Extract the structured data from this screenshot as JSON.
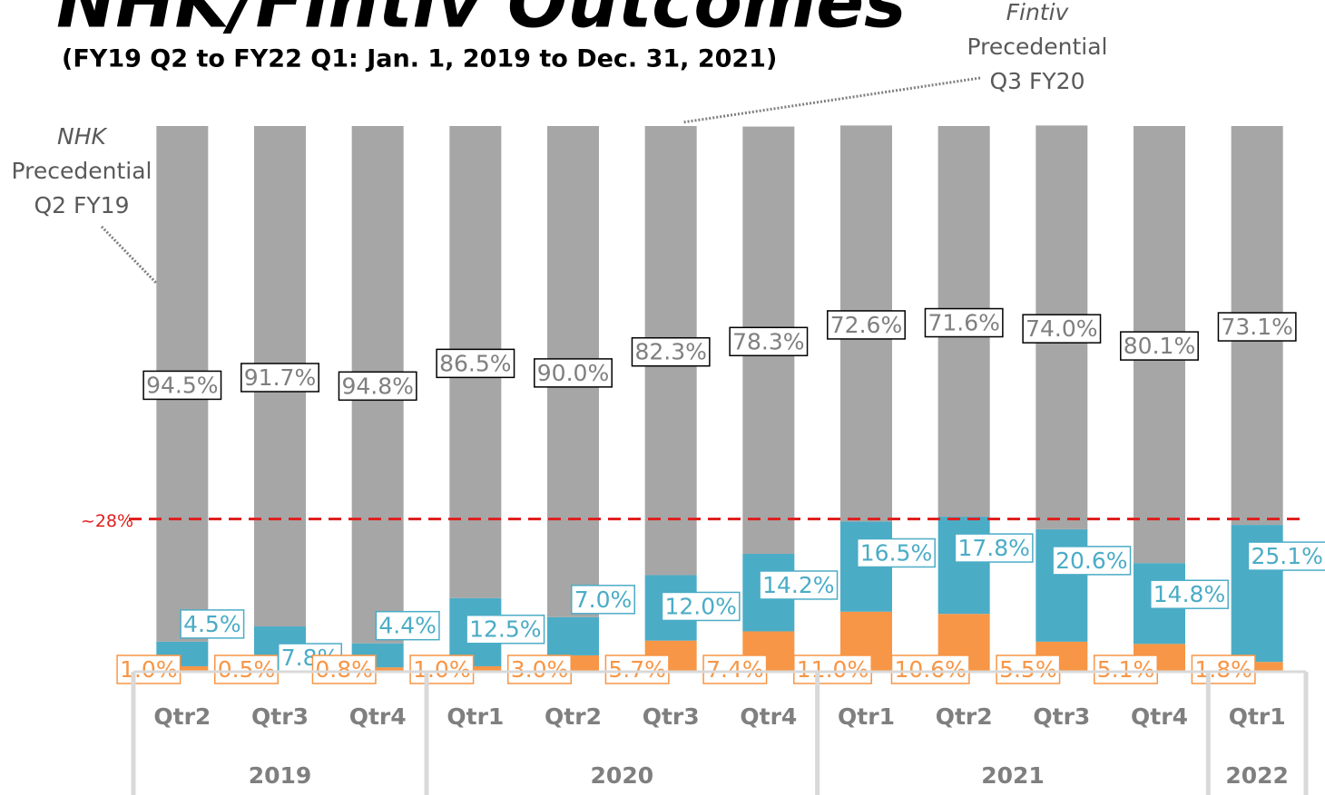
{
  "chart_data": {
    "type": "stacked_bar",
    "title": "NHK/Fintiv Outcomes",
    "subtitle": "(FY19 Q2 to FY22 Q1: Jan. 1, 2019 to Dec. 31, 2021)",
    "groups": [
      {
        "label": "2019",
        "categories": [
          "Qtr2",
          "Qtr3",
          "Qtr4"
        ]
      },
      {
        "label": "2020",
        "categories": [
          "Qtr1",
          "Qtr2",
          "Qtr3",
          "Qtr4"
        ]
      },
      {
        "label": "2021",
        "categories": [
          "Qtr1",
          "Qtr2",
          "Qtr3",
          "Qtr4"
        ]
      },
      {
        "label": "2022",
        "categories": [
          "Qtr1"
        ]
      }
    ],
    "series": [
      {
        "color": "#f79646",
        "values": [
          1.0,
          0.5,
          0.8,
          1.0,
          3.0,
          5.7,
          7.4,
          11.0,
          10.6,
          5.5,
          5.1,
          1.8
        ],
        "value_labels": [
          "1.0%",
          "0.5%",
          "0.8%",
          "1.0%",
          "3.0%",
          "5.7%",
          "7.4%",
          "11.0%",
          "10.6%",
          "5.5%",
          "5.1%",
          "1.8%"
        ]
      },
      {
        "color": "#4bacc6",
        "values": [
          4.5,
          7.8,
          4.4,
          12.5,
          7.0,
          12.0,
          14.2,
          16.5,
          17.8,
          20.6,
          14.8,
          25.1
        ],
        "value_labels": [
          "4.5%",
          "7.8%",
          "4.4%",
          "12.5%",
          "7.0%",
          "12.0%",
          "14.2%",
          "16.5%",
          "17.8%",
          "20.6%",
          "14.8%",
          "25.1%"
        ]
      },
      {
        "color": "#a6a6a6",
        "values": [
          94.5,
          91.7,
          94.8,
          86.5,
          90.0,
          82.3,
          78.3,
          72.6,
          71.6,
          74.0,
          80.1,
          73.1
        ],
        "value_labels": [
          "94.5%",
          "91.7%",
          "94.8%",
          "86.5%",
          "90.0%",
          "82.3%",
          "78.3%",
          "72.6%",
          "71.6%",
          "74.0%",
          "80.1%",
          "73.1%"
        ]
      }
    ],
    "ylim": [
      0,
      100
    ],
    "reference_line": {
      "value": 28,
      "label": "~28%",
      "color": "#e02020"
    },
    "annotations": [
      {
        "lines": [
          "NHK",
          "Precedential",
          "Q2 FY19"
        ]
      },
      {
        "lines": [
          "Fintiv",
          "Precedential",
          "Q3 FY20"
        ]
      }
    ]
  }
}
